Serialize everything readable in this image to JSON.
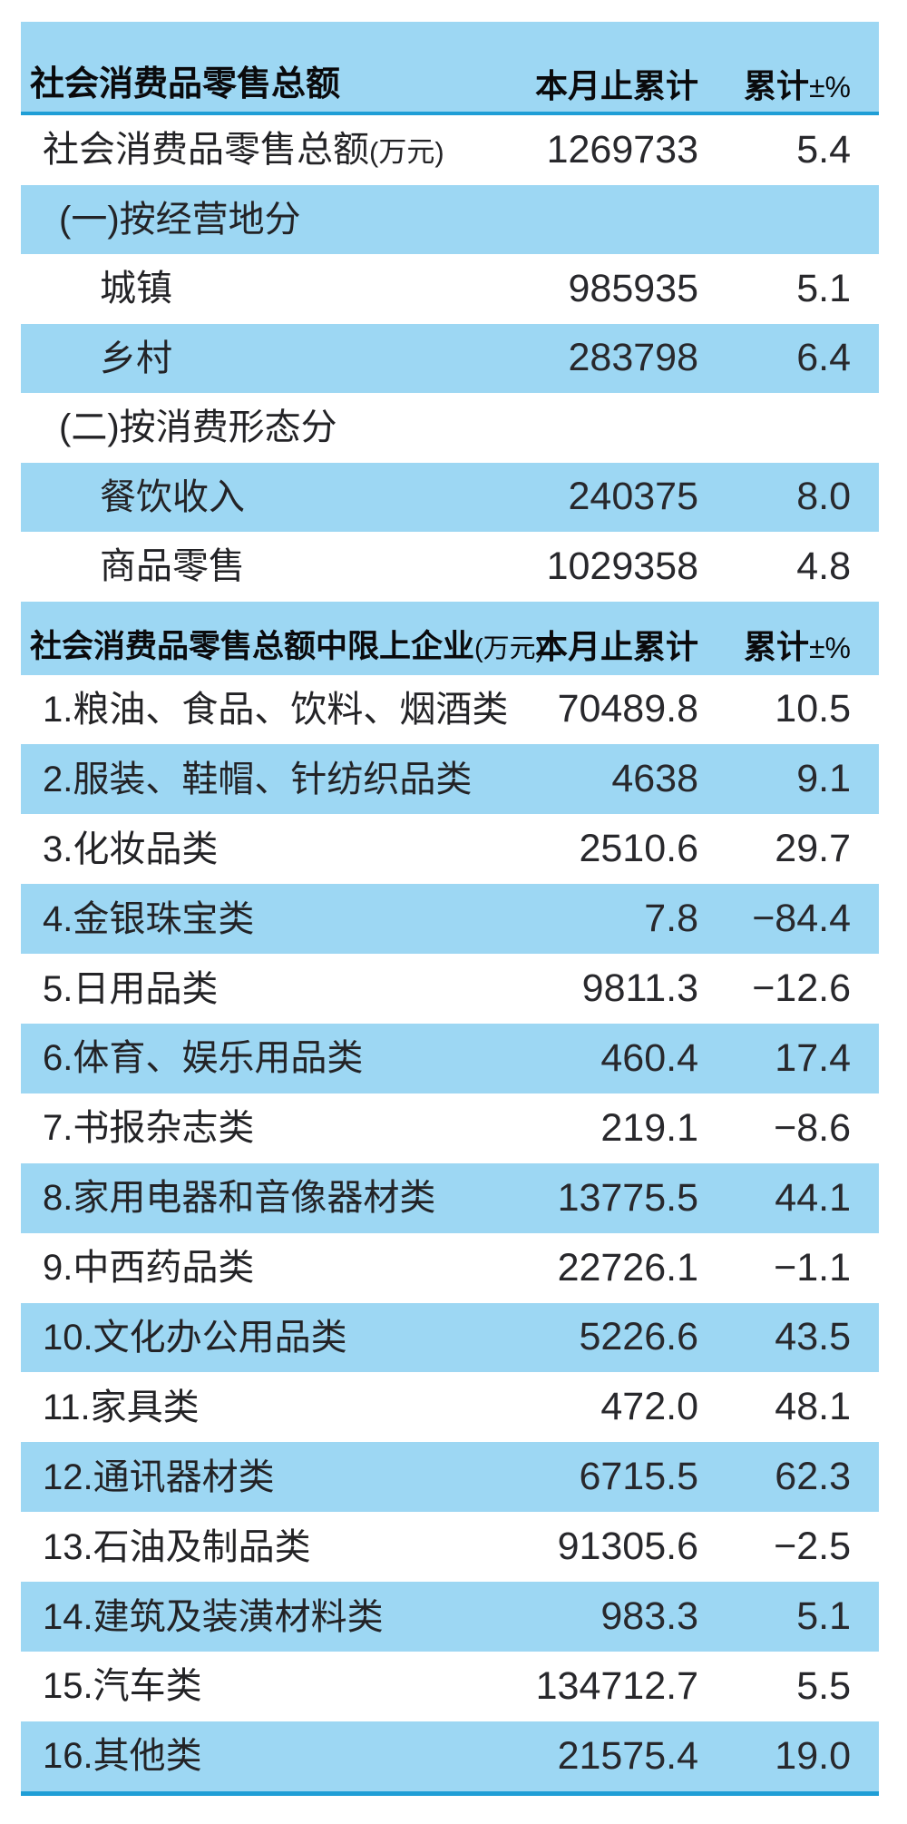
{
  "colors": {
    "row_blue": "#9dd7f3",
    "rule_blue": "#1f9ed6",
    "text_dark": "#232326",
    "header_text": "#0a0a0c",
    "row_white": "#ffffff"
  },
  "table1": {
    "header": {
      "col1": "社会消费品零售总额",
      "col2": "本月止累计",
      "col3": "累计",
      "col3_suffix": "±%"
    },
    "rows": [
      {
        "label": "社会消费品零售总额",
        "label_suffix": "(万元)",
        "value": "1269733",
        "pct": "5.4",
        "indent": 1,
        "blue": false
      },
      {
        "label": "(一)按经营地分",
        "value": "",
        "pct": "",
        "indent": 2,
        "blue": true
      },
      {
        "label": "城镇",
        "value": "985935",
        "pct": "5.1",
        "indent": 3,
        "blue": false
      },
      {
        "label": "乡村",
        "value": "283798",
        "pct": "6.4",
        "indent": 3,
        "blue": true
      },
      {
        "label": "(二)按消费形态分",
        "value": "",
        "pct": "",
        "indent": 2,
        "blue": false
      },
      {
        "label": "餐饮收入",
        "value": "240375",
        "pct": "8.0",
        "indent": 3,
        "blue": true
      },
      {
        "label": "商品零售",
        "value": "1029358",
        "pct": "4.8",
        "indent": 3,
        "blue": false
      }
    ]
  },
  "table2": {
    "header": {
      "col1": "社会消费品零售总额中限上企业",
      "col1_suffix": "(万元)",
      "col2": "本月止累计",
      "col3": "累计",
      "col3_suffix": "±%"
    },
    "rows": [
      {
        "label": "1.粮油、食品、饮料、烟酒类",
        "value": "70489.8",
        "pct": "10.5",
        "indent": 1,
        "blue": false
      },
      {
        "label": "2.服装、鞋帽、针纺织品类",
        "value": "4638",
        "pct": "9.1",
        "indent": 1,
        "blue": true
      },
      {
        "label": "3.化妆品类",
        "value": "2510.6",
        "pct": "29.7",
        "indent": 1,
        "blue": false
      },
      {
        "label": "4.金银珠宝类",
        "value": "7.8",
        "pct": "−84.4",
        "indent": 1,
        "blue": true
      },
      {
        "label": "5.日用品类",
        "value": "9811.3",
        "pct": "−12.6",
        "indent": 1,
        "blue": false
      },
      {
        "label": "6.体育、娱乐用品类",
        "value": "460.4",
        "pct": "17.4",
        "indent": 1,
        "blue": true
      },
      {
        "label": "7.书报杂志类",
        "value": "219.1",
        "pct": "−8.6",
        "indent": 1,
        "blue": false
      },
      {
        "label": "8.家用电器和音像器材类",
        "value": "13775.5",
        "pct": "44.1",
        "indent": 1,
        "blue": true
      },
      {
        "label": "9.中西药品类",
        "value": "22726.1",
        "pct": "−1.1",
        "indent": 1,
        "blue": false
      },
      {
        "label": "10.文化办公用品类",
        "value": "5226.6",
        "pct": "43.5",
        "indent": 1,
        "blue": true
      },
      {
        "label": "11.家具类",
        "value": "472.0",
        "pct": "48.1",
        "indent": 1,
        "blue": false
      },
      {
        "label": "12.通讯器材类",
        "value": "6715.5",
        "pct": "62.3",
        "indent": 1,
        "blue": true
      },
      {
        "label": "13.石油及制品类",
        "value": "91305.6",
        "pct": "−2.5",
        "indent": 1,
        "blue": false
      },
      {
        "label": "14.建筑及装潢材料类",
        "value": "983.3",
        "pct": "5.1",
        "indent": 1,
        "blue": true
      },
      {
        "label": "15.汽车类",
        "value": "134712.7",
        "pct": "5.5",
        "indent": 1,
        "blue": false
      },
      {
        "label": "16.其他类",
        "value": "21575.4",
        "pct": "19.0",
        "indent": 1,
        "blue": true
      }
    ]
  },
  "chart_data": [
    {
      "type": "table",
      "title": "社会消费品零售总额",
      "columns": [
        "社会消费品零售总额",
        "本月止累计",
        "累计±%"
      ],
      "rows": [
        [
          "社会消费品零售总额(万元)",
          "1269733",
          "5.4"
        ],
        [
          "(一)按经营地分",
          "",
          ""
        ],
        [
          "城镇",
          "985935",
          "5.1"
        ],
        [
          "乡村",
          "283798",
          "6.4"
        ],
        [
          "(二)按消费形态分",
          "",
          ""
        ],
        [
          "餐饮收入",
          "240375",
          "8.0"
        ],
        [
          "商品零售",
          "1029358",
          "4.8"
        ]
      ]
    },
    {
      "type": "table",
      "title": "社会消费品零售总额中限上企业(万元)",
      "columns": [
        "社会消费品零售总额中限上企业(万元)",
        "本月止累计",
        "累计±%"
      ],
      "rows": [
        [
          "1.粮油、食品、饮料、烟酒类",
          "70489.8",
          "10.5"
        ],
        [
          "2.服装、鞋帽、针纺织品类",
          "4638",
          "9.1"
        ],
        [
          "3.化妆品类",
          "2510.6",
          "29.7"
        ],
        [
          "4.金银珠宝类",
          "7.8",
          "−84.4"
        ],
        [
          "5.日用品类",
          "9811.3",
          "−12.6"
        ],
        [
          "6.体育、娱乐用品类",
          "460.4",
          "17.4"
        ],
        [
          "7.书报杂志类",
          "219.1",
          "−8.6"
        ],
        [
          "8.家用电器和音像器材类",
          "13775.5",
          "44.1"
        ],
        [
          "9.中西药品类",
          "22726.1",
          "−1.1"
        ],
        [
          "10.文化办公用品类",
          "5226.6",
          "43.5"
        ],
        [
          "11.家具类",
          "472.0",
          "48.1"
        ],
        [
          "12.通讯器材类",
          "6715.5",
          "62.3"
        ],
        [
          "13.石油及制品类",
          "91305.6",
          "−2.5"
        ],
        [
          "14.建筑及装潢材料类",
          "983.3",
          "5.1"
        ],
        [
          "15.汽车类",
          "134712.7",
          "5.5"
        ],
        [
          "16.其他类",
          "21575.4",
          "19.0"
        ]
      ]
    }
  ]
}
